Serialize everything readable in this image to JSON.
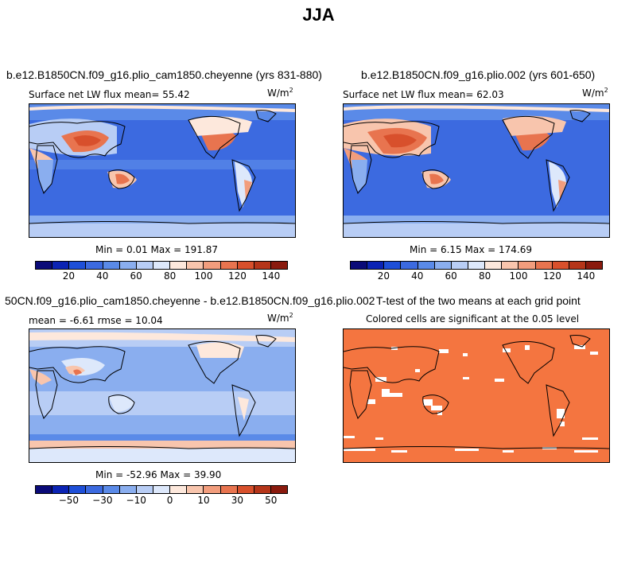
{
  "figure_title": "JJA",
  "panels": {
    "p1": {
      "title": "b.e12.B1850CN.f09_g16.plio_cam1850.cheyenne (yrs 831-880)",
      "subtitle": "Surface net LW flux mean=  55.42",
      "units": "W/m",
      "units_exp": "2",
      "minmax": "Min =   0.01 Max = 191.87"
    },
    "p2": {
      "title": "b.e12.B1850CN.f09_g16.plio.002 (yrs 601-650)",
      "subtitle": "Surface net LW flux mean=  62.03",
      "units": "W/m",
      "units_exp": "2",
      "minmax": "Min =   6.15 Max = 174.69"
    },
    "p3": {
      "title": "50CN.f09_g16.plio_cam1850.cheyenne - b.e12.B1850CN.f09_g16.plio.002",
      "subtitle": "mean =  -6.61    rmse =  10.04",
      "units": "W/m",
      "units_exp": "2",
      "minmax": "Min = -52.96 Max =  39.90"
    },
    "p4": {
      "title": "T-test of the two means at each grid point",
      "subtitle": "Colored cells are significant at the 0.05 level",
      "significant_color": "#f47540"
    }
  },
  "colorbars": {
    "abs": {
      "colors": [
        "#0a0a78",
        "#0b23b4",
        "#1e4fd8",
        "#3c6ae0",
        "#5a8ae8",
        "#8aaeef",
        "#b8cdf5",
        "#dde8fb",
        "#fde8dc",
        "#f8c5ad",
        "#f29d7d",
        "#e8744f",
        "#d8502c",
        "#b53519",
        "#8a1a0e"
      ],
      "labels": [
        "20",
        "40",
        "60",
        "80",
        "100",
        "120",
        "140"
      ]
    },
    "diff": {
      "colors": [
        "#0a0a78",
        "#0b23b4",
        "#1e4fd8",
        "#3c6ae0",
        "#5a8ae8",
        "#8aaeef",
        "#b8cdf5",
        "#dde8fb",
        "#fde8dc",
        "#f8c5ad",
        "#f29d7d",
        "#e8744f",
        "#d8502c",
        "#b53519",
        "#8a1a0e"
      ],
      "labels": [
        "−50",
        "−30",
        "−10",
        "0",
        "10",
        "30",
        "50"
      ]
    }
  }
}
